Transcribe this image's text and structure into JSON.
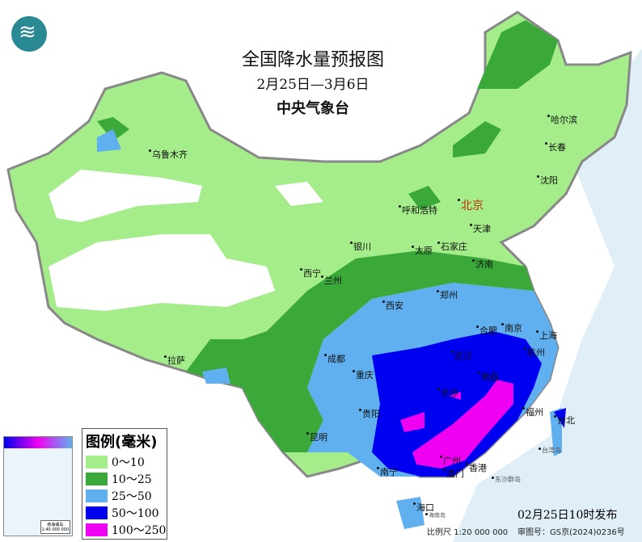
{
  "title": "全国降水量预报图",
  "period": "2月25日—3月6日",
  "issuer": "中央气象台",
  "logo_icon": "cma-weather-logo",
  "legend": {
    "title": "图例(毫米)",
    "items": [
      {
        "label": "0～10",
        "color": "#a4ed8a"
      },
      {
        "label": "10～25",
        "color": "#3aa93a"
      },
      {
        "label": "25～50",
        "color": "#60b0f0"
      },
      {
        "label": "50～100",
        "color": "#0000f0"
      },
      {
        "label": "100～250",
        "color": "#f000f0"
      }
    ]
  },
  "cities": [
    "乌鲁木齐",
    "拉萨",
    "西宁",
    "兰州",
    "银川",
    "呼和浩特",
    "北京",
    "天津",
    "石家庄",
    "太原",
    "济南",
    "郑州",
    "西安",
    "成都",
    "重庆",
    "贵阳",
    "昆明",
    "南宁",
    "广州",
    "澳门",
    "香港",
    "海口",
    "合肥",
    "南京",
    "上海",
    "杭州",
    "武汉",
    "长沙",
    "南昌",
    "福州",
    "台北",
    "哈尔滨",
    "长春",
    "沈阳"
  ],
  "islands": [
    "台湾岛",
    "东沙群岛",
    "海南岛"
  ],
  "inset": {
    "label": "南海诸岛",
    "scale": "1:40 000 000"
  },
  "footer": {
    "published": "02月25日10时发布",
    "scale": "比例尺 1:20 000 000",
    "approval": "审图号：GS京(2024)0236号"
  }
}
